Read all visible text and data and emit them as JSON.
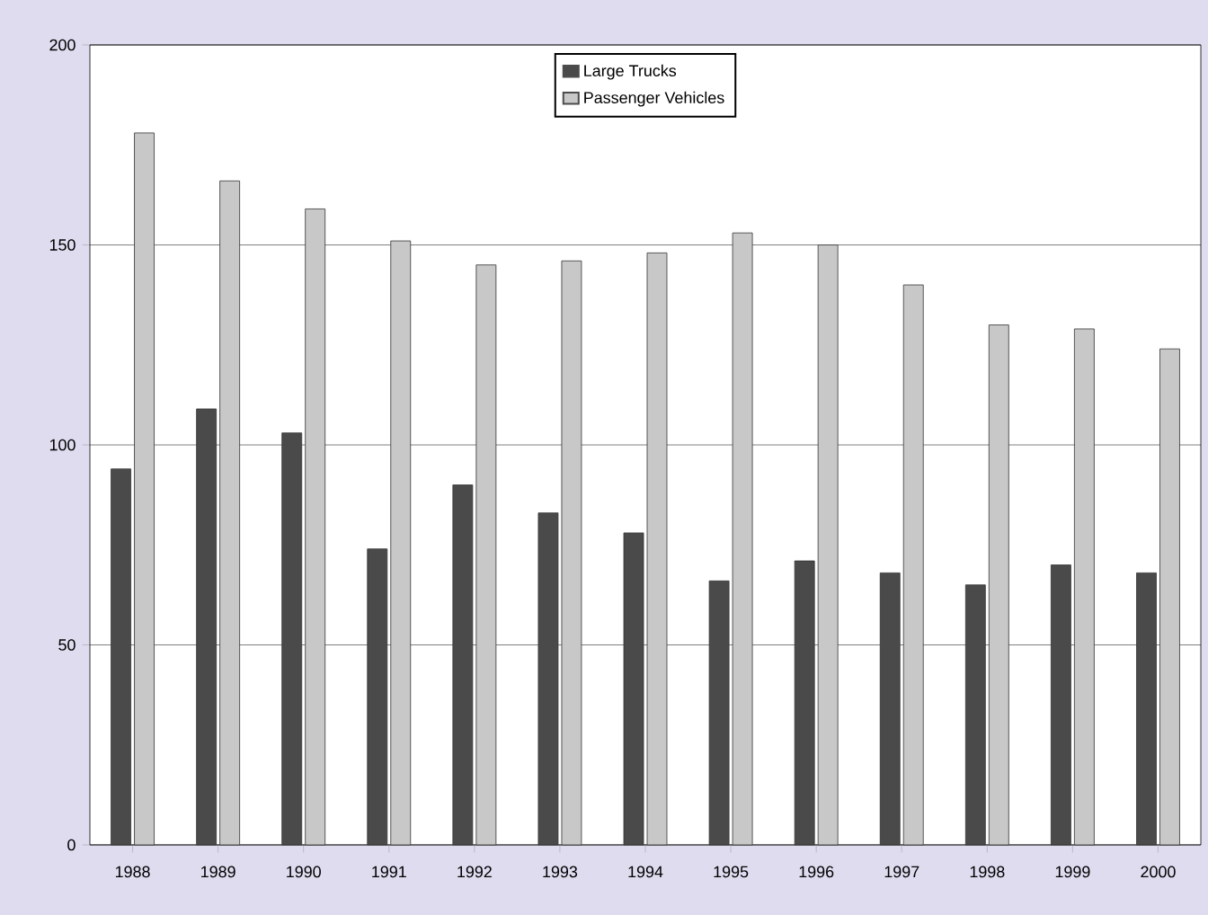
{
  "chart_data": {
    "type": "bar",
    "categories": [
      "1988",
      "1989",
      "1990",
      "1991",
      "1992",
      "1993",
      "1994",
      "1995",
      "1996",
      "1997",
      "1998",
      "1999",
      "2000"
    ],
    "series": [
      {
        "name": "Large Trucks",
        "color": "#4a4a4a",
        "values": [
          94,
          109,
          103,
          74,
          90,
          83,
          78,
          66,
          71,
          68,
          65,
          70,
          68
        ]
      },
      {
        "name": "Passenger Vehicles",
        "color": "#c8c8c8",
        "values": [
          178,
          166,
          159,
          151,
          145,
          146,
          148,
          153,
          150,
          140,
          130,
          129,
          124
        ]
      }
    ],
    "ylim": [
      0,
      200
    ],
    "yticks": [
      0,
      50,
      100,
      150,
      200
    ],
    "grid": "y",
    "legend": "top"
  }
}
